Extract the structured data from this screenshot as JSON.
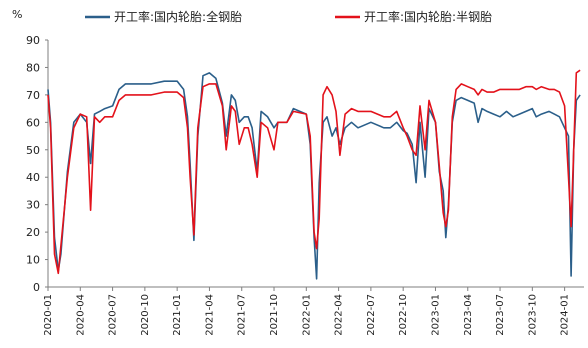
{
  "chart_data": {
    "type": "line",
    "ylabel": "%",
    "ylim": [
      0,
      90
    ],
    "y_ticks": [
      "0",
      "10",
      "20",
      "30",
      "40",
      "50",
      "60",
      "70",
      "80",
      "90"
    ],
    "x_tick_labels": [
      "2020-01",
      "2020-04",
      "2020-07",
      "2020-10",
      "2021-01",
      "2021-04",
      "2021-07",
      "2021-10",
      "2022-01",
      "2022-04",
      "2022-07",
      "2022-10",
      "2023-01",
      "2023-04",
      "2023-07",
      "2023-10",
      "2024-01"
    ],
    "grid": false,
    "legend_position": "top",
    "series": [
      {
        "name": "开工率:国内轮胎:全钢胎",
        "color": "#2b5f8a",
        "x": [
          2020.0,
          2020.02,
          2020.05,
          2020.08,
          2020.1,
          2020.15,
          2020.2,
          2020.25,
          2020.3,
          2020.33,
          2020.36,
          2020.4,
          2020.44,
          2020.5,
          2020.55,
          2020.6,
          2020.7,
          2020.8,
          2020.9,
          2021.0,
          2021.05,
          2021.08,
          2021.1,
          2021.13,
          2021.16,
          2021.2,
          2021.25,
          2021.3,
          2021.35,
          2021.38,
          2021.42,
          2021.45,
          2021.48,
          2021.52,
          2021.55,
          2021.58,
          2021.62,
          2021.65,
          2021.7,
          2021.75,
          2021.78,
          2021.85,
          2021.9,
          2022.0,
          2022.03,
          2022.06,
          2022.08,
          2022.1,
          2022.13,
          2022.16,
          2022.2,
          2022.23,
          2022.26,
          2022.3,
          2022.35,
          2022.4,
          2022.5,
          2022.6,
          2022.65,
          2022.7,
          2022.75,
          2022.78,
          2022.82,
          2022.85,
          2022.88,
          2022.92,
          2022.95,
          2023.0,
          2023.03,
          2023.06,
          2023.08,
          2023.1,
          2023.13,
          2023.16,
          2023.2,
          2023.25,
          2023.3,
          2023.33,
          2023.36,
          2023.4,
          2023.45,
          2023.5,
          2023.55,
          2023.6,
          2023.65,
          2023.7,
          2023.75,
          2023.78,
          2023.82,
          2023.88,
          2023.92,
          2023.96,
          2024.0,
          2024.03,
          2024.05,
          2024.07,
          2024.09,
          2024.12
        ],
        "values": [
          72,
          60,
          18,
          6,
          12,
          42,
          60,
          63,
          60,
          45,
          63,
          64,
          65,
          66,
          72,
          74,
          74,
          74,
          75,
          75,
          72,
          62,
          45,
          17,
          55,
          77,
          78,
          76,
          67,
          55,
          70,
          68,
          60,
          62,
          62,
          58,
          42,
          64,
          62,
          58,
          60,
          60,
          65,
          63,
          52,
          18,
          3,
          38,
          60,
          62,
          55,
          58,
          52,
          58,
          60,
          58,
          60,
          58,
          58,
          60,
          57,
          56,
          52,
          38,
          60,
          40,
          65,
          60,
          42,
          35,
          18,
          30,
          60,
          68,
          69,
          68,
          67,
          60,
          65,
          64,
          63,
          62,
          64,
          62,
          63,
          64,
          65,
          62,
          63,
          64,
          63,
          62,
          58,
          55,
          4,
          50,
          68,
          70
        ]
      },
      {
        "name": "开工率:国内轮胎:半钢胎",
        "color": "#e3121b",
        "x": [
          2020.0,
          2020.02,
          2020.05,
          2020.08,
          2020.1,
          2020.15,
          2020.2,
          2020.25,
          2020.3,
          2020.33,
          2020.36,
          2020.4,
          2020.44,
          2020.5,
          2020.55,
          2020.6,
          2020.7,
          2020.8,
          2020.9,
          2021.0,
          2021.05,
          2021.08,
          2021.1,
          2021.13,
          2021.16,
          2021.2,
          2021.25,
          2021.3,
          2021.35,
          2021.38,
          2021.42,
          2021.45,
          2021.48,
          2021.52,
          2021.55,
          2021.58,
          2021.62,
          2021.65,
          2021.7,
          2021.75,
          2021.78,
          2021.85,
          2021.9,
          2022.0,
          2022.03,
          2022.06,
          2022.08,
          2022.1,
          2022.13,
          2022.16,
          2022.2,
          2022.23,
          2022.26,
          2022.3,
          2022.35,
          2022.4,
          2022.5,
          2022.6,
          2022.65,
          2022.7,
          2022.75,
          2022.78,
          2022.82,
          2022.85,
          2022.88,
          2022.92,
          2022.95,
          2023.0,
          2023.03,
          2023.06,
          2023.08,
          2023.1,
          2023.13,
          2023.16,
          2023.2,
          2023.25,
          2023.3,
          2023.33,
          2023.36,
          2023.4,
          2023.45,
          2023.5,
          2023.55,
          2023.6,
          2023.65,
          2023.7,
          2023.75,
          2023.78,
          2023.82,
          2023.88,
          2023.92,
          2023.96,
          2024.0,
          2024.03,
          2024.05,
          2024.07,
          2024.09,
          2024.12
        ],
        "values": [
          70,
          58,
          12,
          5,
          15,
          40,
          58,
          63,
          62,
          28,
          62,
          60,
          62,
          62,
          68,
          70,
          70,
          70,
          71,
          71,
          69,
          58,
          40,
          19,
          58,
          73,
          74,
          74,
          66,
          50,
          66,
          64,
          52,
          58,
          58,
          52,
          40,
          60,
          58,
          50,
          60,
          60,
          64,
          63,
          55,
          20,
          14,
          25,
          70,
          73,
          70,
          64,
          48,
          63,
          65,
          64,
          64,
          62,
          62,
          64,
          58,
          55,
          50,
          48,
          66,
          50,
          68,
          60,
          44,
          27,
          22,
          28,
          62,
          72,
          74,
          73,
          72,
          70,
          72,
          71,
          71,
          72,
          72,
          72,
          72,
          73,
          73,
          72,
          73,
          72,
          72,
          71,
          66,
          40,
          22,
          50,
          78,
          79
        ]
      }
    ]
  }
}
